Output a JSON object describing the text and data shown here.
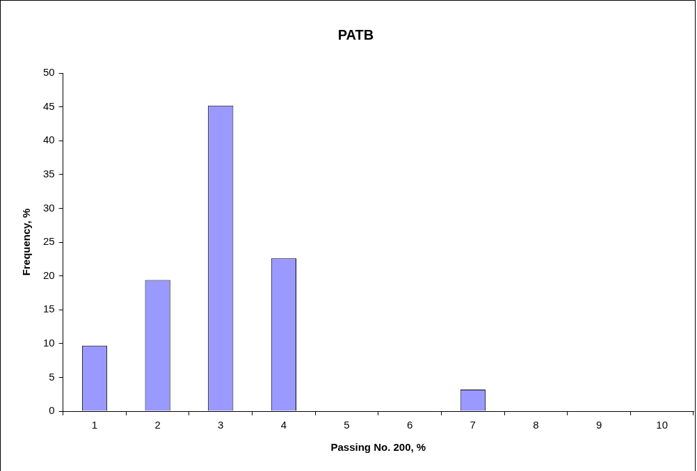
{
  "chart_data": {
    "type": "bar",
    "title": "PATB",
    "xlabel": "Passing No. 200, %",
    "ylabel": "Frequency, %",
    "categories": [
      "1",
      "2",
      "3",
      "4",
      "5",
      "6",
      "7",
      "8",
      "9",
      "10"
    ],
    "values": [
      9.7,
      19.4,
      45.2,
      22.6,
      0,
      0,
      3.2,
      0,
      0,
      0
    ],
    "color": "#9999ff",
    "ylim": [
      0,
      50
    ],
    "yticks": [
      0,
      5,
      10,
      15,
      20,
      25,
      30,
      35,
      40,
      45,
      50
    ]
  }
}
